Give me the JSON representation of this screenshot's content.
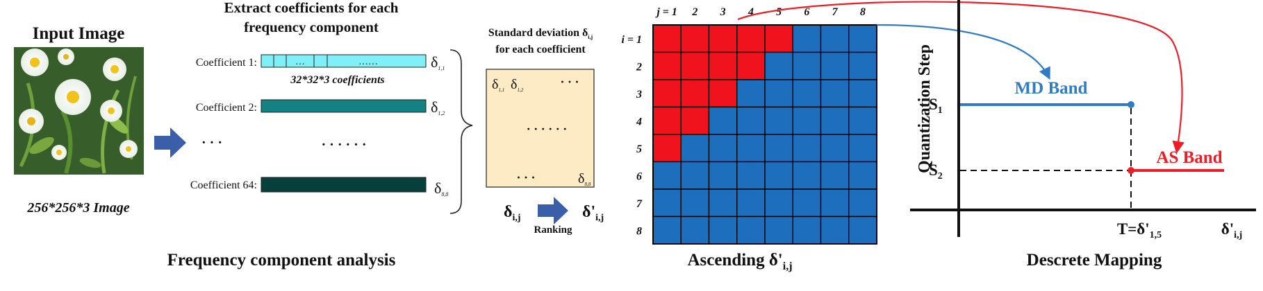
{
  "input_section": {
    "title": "Input Image",
    "caption": "256*256*3 Image"
  },
  "extract_section": {
    "title_line1": "Extract coefficients for each",
    "title_line2": "frequency component",
    "coefficients": [
      {
        "label": "Coefficient 1:",
        "delta_sub": "1,1",
        "color": "#7ff0f7"
      },
      {
        "label": "Coefficient 2:",
        "delta_sub": "1,2",
        "color": "#148282"
      },
      {
        "label": "Coefficient 64:",
        "delta_sub": "8,8",
        "color": "#05403c"
      }
    ],
    "coef1_cell_dots": "…",
    "coef1_long_dots": "……",
    "coef_count_note": "32*32*3 coefficients",
    "mid_dots_left": "· · ·",
    "mid_dots_right": "· · · · · ·",
    "section_caption": "Frequency component analysis"
  },
  "stddev_section": {
    "title_line1": "Standard deviation δ",
    "title_sub": "i,j",
    "title_line2": "for each coefficient",
    "cell_11": "1,1",
    "cell_12": "1,2",
    "cell_88": "8,8",
    "dots_top": "· · ·",
    "dots_mid": "· · · · · ·",
    "dots_bottom": "· · ·",
    "box_color": "#fdebc6",
    "delta_left": "δ",
    "delta_left_sub": "i,j",
    "delta_right": "δ'",
    "delta_right_sub": "i,j",
    "ranking_label": "Ranking"
  },
  "grid_section": {
    "col_labels": [
      "j = 1",
      "2",
      "3",
      "4",
      "5",
      "6",
      "7",
      "8"
    ],
    "row_labels": [
      "i = 1",
      "2",
      "3",
      "4",
      "5",
      "6",
      "7",
      "8"
    ],
    "red_counts_per_row": [
      5,
      4,
      3,
      2,
      1,
      0,
      0,
      0
    ],
    "red_color": "#f0131e",
    "blue_color": "#1e6ebe",
    "caption_main": "Ascending δ'",
    "caption_sub": "i,j"
  },
  "mapping_section": {
    "y_axis_label": "Quantization Step",
    "s1_label": "S",
    "s1_sub": "1",
    "s2_label": "S",
    "s2_sub": "2",
    "md_band": "MD Band",
    "as_band": "AS Band",
    "threshold_label": "T=δ'",
    "threshold_sub": "1,5",
    "x_axis_label": "δ'",
    "x_axis_sub": "i,j",
    "caption": "Descrete Mapping",
    "md_color": "#2f7bc6",
    "as_color": "#ee1c25"
  },
  "colors": {
    "arrow_fill": "#3b5ea8",
    "text": "#111111"
  }
}
